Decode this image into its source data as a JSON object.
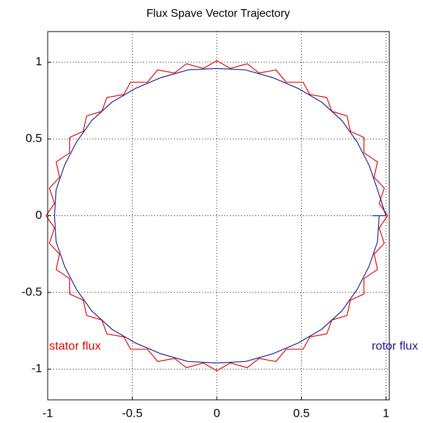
{
  "chart_data": {
    "type": "line",
    "title": "Flux Spave Vector Trajectory",
    "xlim": [
      -1,
      1.02
    ],
    "ylim": [
      -1.2,
      1.2
    ],
    "xticks": [
      -1,
      -0.5,
      0,
      0.5,
      1
    ],
    "yticks": [
      -1,
      -0.5,
      0,
      0.5,
      1
    ],
    "grid": true,
    "series": [
      {
        "name": "stator flux",
        "color": "#e00000",
        "x": [
          1.01,
          0.96,
          0.99,
          0.93,
          0.95,
          0.87,
          0.87,
          0.79,
          0.77,
          0.68,
          0.65,
          0.55,
          0.51,
          0.41,
          0.35,
          0.25,
          0.18,
          0.08,
          0,
          -0.08,
          -0.18,
          -0.25,
          -0.35,
          -0.41,
          -0.51,
          -0.55,
          -0.65,
          -0.68,
          -0.77,
          -0.79,
          -0.87,
          -0.87,
          -0.95,
          -0.93,
          -0.99,
          -0.96,
          -1.01,
          -0.96,
          -0.99,
          -0.93,
          -0.95,
          -0.87,
          -0.87,
          -0.79,
          -0.77,
          -0.68,
          -0.65,
          -0.55,
          -0.51,
          -0.41,
          -0.35,
          -0.25,
          -0.18,
          -0.08,
          0,
          0.08,
          0.18,
          0.25,
          0.35,
          0.41,
          0.51,
          0.55,
          0.65,
          0.68,
          0.77,
          0.79,
          0.87,
          0.87,
          0.95,
          0.93,
          0.99,
          0.96,
          1.01
        ],
        "values": [
          0,
          0.08,
          0.18,
          0.25,
          0.35,
          0.41,
          0.51,
          0.55,
          0.65,
          0.68,
          0.77,
          0.79,
          0.87,
          0.87,
          0.95,
          0.93,
          0.99,
          0.96,
          1.01,
          0.96,
          0.99,
          0.93,
          0.95,
          0.87,
          0.87,
          0.79,
          0.77,
          0.68,
          0.65,
          0.55,
          0.51,
          0.41,
          0.35,
          0.25,
          0.18,
          0.08,
          0,
          -0.08,
          -0.18,
          -0.25,
          -0.35,
          -0.41,
          -0.51,
          -0.55,
          -0.65,
          -0.68,
          -0.77,
          -0.79,
          -0.87,
          -0.87,
          -0.95,
          -0.93,
          -0.99,
          -0.96,
          -1.01,
          -0.96,
          -0.99,
          -0.93,
          -0.95,
          -0.87,
          -0.87,
          -0.79,
          -0.77,
          -0.68,
          -0.65,
          -0.55,
          -0.51,
          -0.41,
          -0.35,
          -0.25,
          -0.18,
          -0.08,
          0
        ]
      },
      {
        "name": "rotor flux",
        "color": "#1a1a8c",
        "x": [
          0.92,
          1.0,
          0.95,
          0.9,
          0.83,
          0.74,
          0.62,
          0.48,
          0.33,
          0.17,
          0,
          -0.17,
          -0.33,
          -0.48,
          -0.62,
          -0.74,
          -0.83,
          -0.9,
          -0.95,
          -0.96,
          -0.95,
          -0.9,
          -0.83,
          -0.74,
          -0.62,
          -0.48,
          -0.33,
          -0.17,
          0,
          0.17,
          0.33,
          0.48,
          0.62,
          0.74,
          0.83,
          0.9,
          0.95,
          0.96
        ],
        "values": [
          0,
          0,
          0.17,
          0.33,
          0.48,
          0.62,
          0.74,
          0.83,
          0.9,
          0.95,
          0.96,
          0.95,
          0.9,
          0.83,
          0.74,
          0.62,
          0.48,
          0.33,
          0.17,
          0,
          -0.17,
          -0.33,
          -0.48,
          -0.62,
          -0.74,
          -0.83,
          -0.9,
          -0.95,
          -0.96,
          -0.95,
          -0.9,
          -0.83,
          -0.74,
          -0.62,
          -0.48,
          -0.33,
          -0.17,
          0
        ]
      }
    ]
  }
}
